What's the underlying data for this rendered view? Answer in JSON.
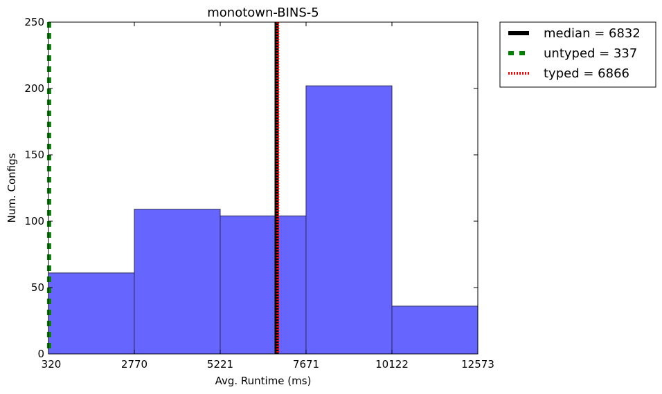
{
  "chart_data": {
    "type": "bar",
    "title": "monotown-BINS-5",
    "xlabel": "Avg. Runtime (ms)",
    "ylabel": "Num. Configs",
    "xlim": [
      320,
      12573
    ],
    "ylim": [
      0,
      250
    ],
    "x_ticks": [
      "320",
      "2770",
      "5221",
      "7671",
      "10122",
      "12573"
    ],
    "y_ticks": [
      "0",
      "50",
      "100",
      "150",
      "200",
      "250"
    ],
    "bins": [
      {
        "x0": 320,
        "x1": 2770,
        "value": 61
      },
      {
        "x0": 2770,
        "x1": 5221,
        "value": 109
      },
      {
        "x0": 5221,
        "x1": 7671,
        "value": 104
      },
      {
        "x0": 7671,
        "x1": 10122,
        "value": 202
      },
      {
        "x0": 10122,
        "x1": 12573,
        "value": 36
      }
    ],
    "bar_color": "#6666ff",
    "reference_lines": [
      {
        "label": "median = 6832",
        "x": 6832,
        "color": "#000000",
        "style": "solid"
      },
      {
        "label": "untyped = 337",
        "x": 337,
        "color": "#008000",
        "style": "dashed"
      },
      {
        "label": "typed = 6866",
        "x": 6866,
        "color": "#ff0000",
        "style": "dotted"
      }
    ],
    "grid": false,
    "legend_position": "outside-top-right"
  }
}
